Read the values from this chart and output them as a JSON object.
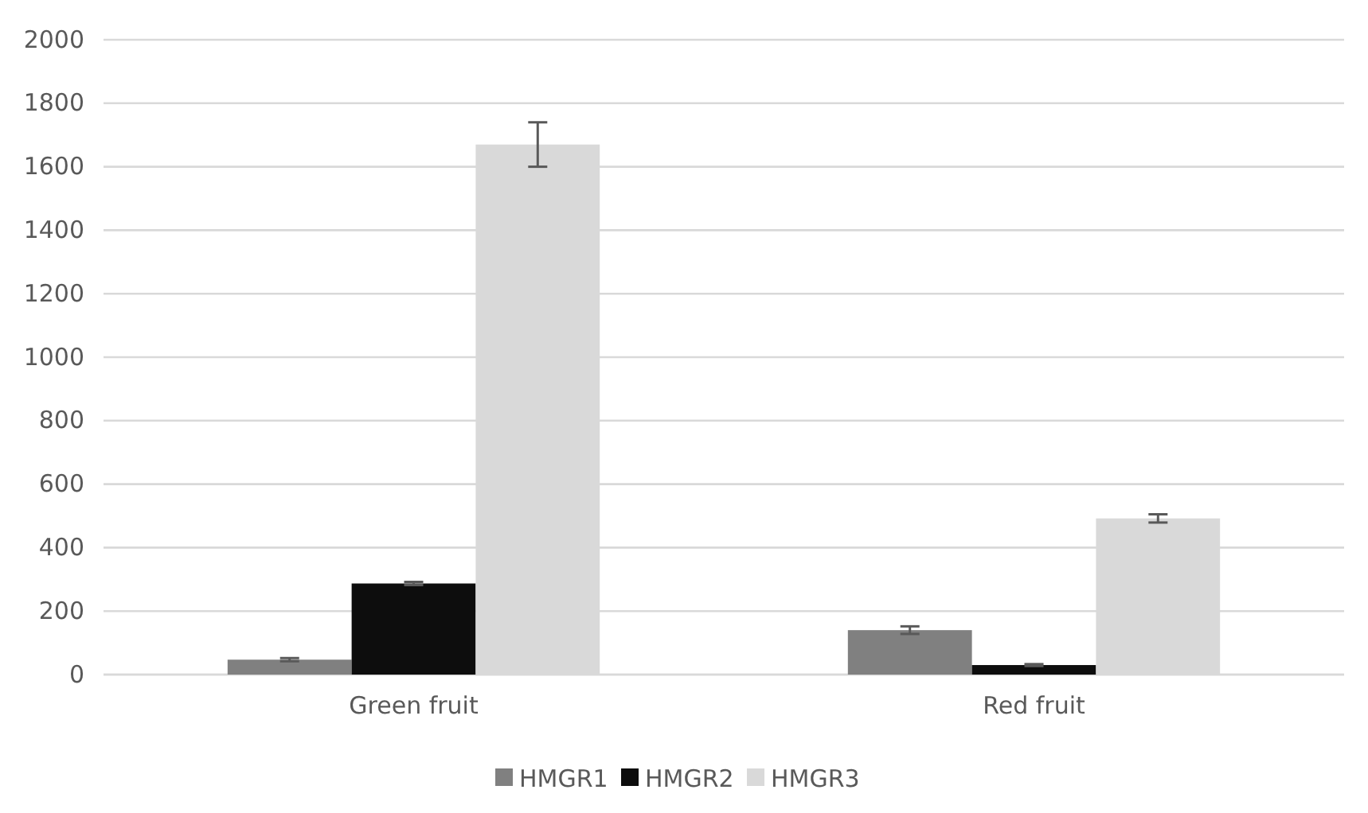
{
  "chart_data": {
    "type": "bar",
    "categories": [
      "Green fruit",
      "Red fruit"
    ],
    "series": [
      {
        "name": "HMGR1",
        "color": "#808080",
        "values": [
          47,
          140
        ],
        "errors": [
          5,
          12
        ]
      },
      {
        "name": "HMGR2",
        "color": "#0d0d0d",
        "values": [
          287,
          30
        ],
        "errors": [
          5,
          3
        ]
      },
      {
        "name": "HMGR3",
        "color": "#d9d9d9",
        "values": [
          1670,
          492
        ],
        "errors": [
          70,
          13
        ]
      }
    ],
    "ylim": [
      0,
      2000
    ],
    "yticks": [
      0,
      200,
      400,
      600,
      800,
      1000,
      1200,
      1400,
      1600,
      1800,
      2000
    ],
    "grid": "y",
    "legend": "bottom"
  }
}
